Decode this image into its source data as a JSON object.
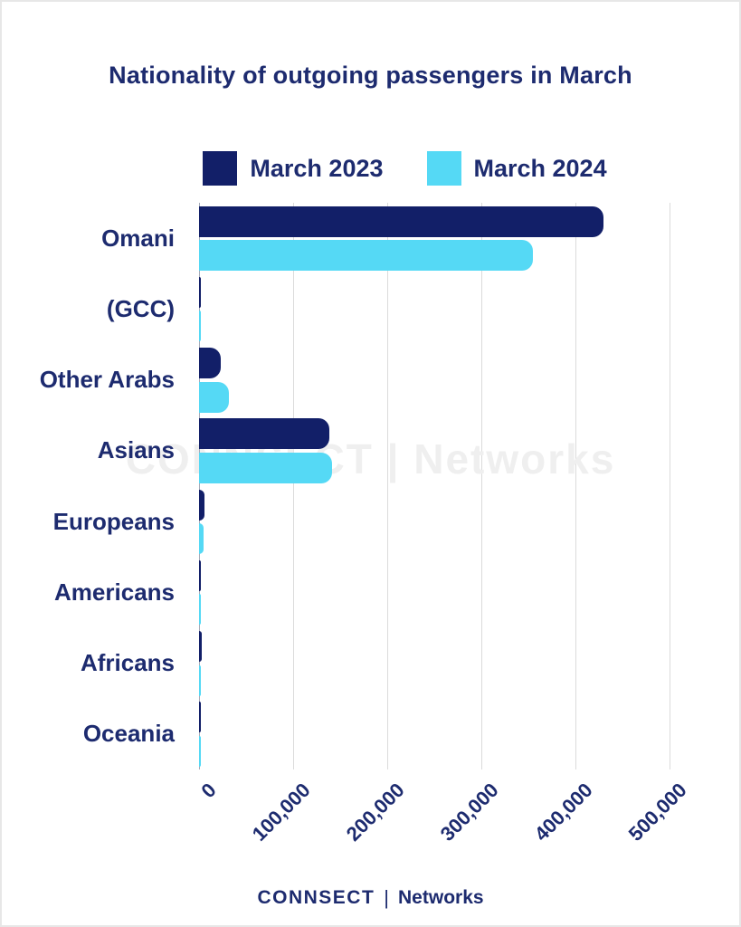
{
  "title": "Nationality of outgoing passengers in March",
  "watermark": "CONNSECT | Networks",
  "footer": {
    "brand": "CONNSECT",
    "divider": "|",
    "name": "Networks"
  },
  "colors": {
    "navy_bar": "#121f68",
    "cyan_bar": "#55d9f5",
    "text_navy": "#1d2b6f",
    "gridline": "#dbdbdb",
    "watermark_gray": "#efefef"
  },
  "chart_data": {
    "type": "bar",
    "orientation": "horizontal",
    "title": "Nationality of outgoing passengers in March",
    "xlabel": "",
    "ylabel": "",
    "xlim": [
      0,
      500000
    ],
    "grid": "vertical",
    "legend_position": "top",
    "x_ticks": [
      "0",
      "100,000",
      "200,000",
      "300,000",
      "400,000",
      "500,000"
    ],
    "x_tick_values": [
      0,
      100000,
      200000,
      300000,
      400000,
      500000
    ],
    "categories": [
      "Omani",
      "(GCC)",
      "Other Arabs",
      "Asians",
      "Europeans",
      "Americans",
      "Africans",
      "Oceania"
    ],
    "series": [
      {
        "name": "March 2023",
        "color": "#121f68",
        "values": [
          430000,
          1500,
          23000,
          138000,
          5500,
          2200,
          3000,
          400
        ]
      },
      {
        "name": "March 2024",
        "color": "#55d9f5",
        "values": [
          355000,
          1000,
          32000,
          141000,
          4500,
          1000,
          1700,
          250
        ]
      }
    ]
  }
}
